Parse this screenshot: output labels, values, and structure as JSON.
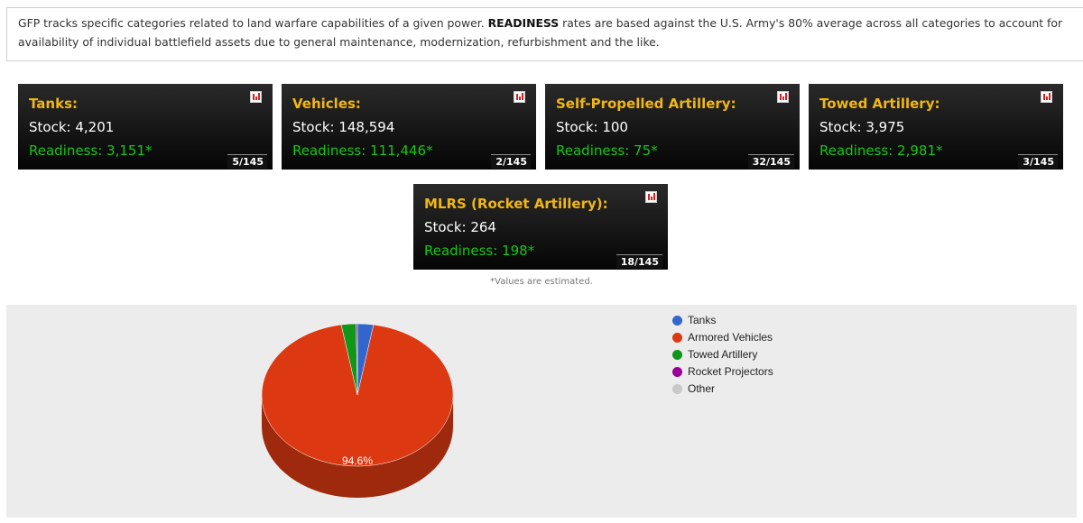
{
  "info": {
    "text_before": "GFP tracks specific categories related to land warfare capabilities of a given power. ",
    "bold": "READINESS",
    "text_after": " rates are based against the U.S. Army's 80% average across all categories to account for availability of individual battlefield assets due to general maintenance, modernization, refurbishment and the like."
  },
  "cards": [
    {
      "title": "Tanks:",
      "stock": "Stock: 4,201",
      "readiness": "Readiness: 3,151*",
      "rank": "5/145"
    },
    {
      "title": "Vehicles:",
      "stock": "Stock: 148,594",
      "readiness": "Readiness: 111,446*",
      "rank": "2/145"
    },
    {
      "title": "Self-Propelled Artillery:",
      "stock": "Stock: 100",
      "readiness": "Readiness: 75*",
      "rank": "32/145"
    },
    {
      "title": "Towed Artillery:",
      "stock": "Stock: 3,975",
      "readiness": "Readiness: 2,981*",
      "rank": "3/145"
    },
    {
      "title": "MLRS (Rocket Artillery):",
      "stock": "Stock: 264",
      "readiness": "Readiness: 198*",
      "rank": "18/145"
    }
  ],
  "chart_icon": "bar-chart-icon",
  "note": "*Values are estimated.",
  "chart_data": {
    "type": "pie",
    "style": "3d",
    "categories": [
      "Tanks",
      "Armored Vehicles",
      "Towed Artillery",
      "Rocket Projectors",
      "Other"
    ],
    "values": [
      2.7,
      94.6,
      2.5,
      0.2,
      0
    ],
    "colors": [
      "#3366cc",
      "#dc3912",
      "#109618",
      "#990099",
      "#c8c8c8"
    ],
    "data_labels": {
      "Armored Vehicles": "94.6%"
    },
    "legend": "right"
  }
}
